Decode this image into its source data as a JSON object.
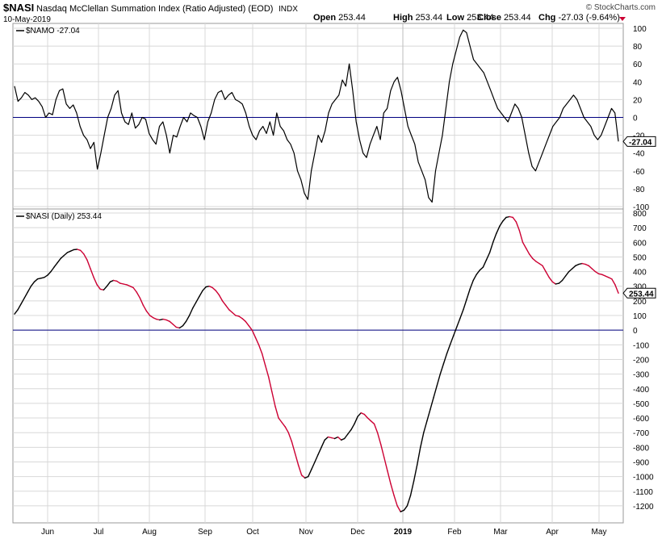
{
  "header": {
    "symbol": "$NASI",
    "name": "Nasdaq McClellan Summation Index (Ratio Adjusted) (EOD)",
    "exchange": "INDX",
    "date": "10-May-2019",
    "brand": "© StockCharts.com",
    "ohlc": [
      {
        "label": "Open",
        "value": "253.44"
      },
      {
        "label": "High",
        "value": "253.44"
      },
      {
        "label": "Low",
        "value": "253.44"
      },
      {
        "label": "Close",
        "value": "253.44"
      },
      {
        "label": "Chg",
        "value": "-27.03 (-9.64%)"
      }
    ]
  },
  "colors": {
    "line": "#000000",
    "down": "#cc0033",
    "zero_line": "#000080",
    "grid": "#d8d8d8",
    "border": "#999999"
  },
  "chart_data": [
    {
      "type": "line",
      "legend": "$NAMO -27.04",
      "last_value_label": "-27.04",
      "ylim": [
        -100,
        100
      ],
      "yticks": [
        100,
        80,
        60,
        40,
        20,
        0,
        -20,
        -40,
        -60,
        -80,
        -100
      ],
      "zero_line": 0,
      "x_labels": [
        "Jun",
        "Jul",
        "Aug",
        "Sep",
        "Oct",
        "Nov",
        "Dec",
        "2019",
        "Feb",
        "Mar",
        "Apr",
        "May"
      ],
      "values": [
        35,
        18,
        22,
        28,
        25,
        20,
        22,
        18,
        12,
        0,
        5,
        3,
        20,
        30,
        32,
        15,
        10,
        14,
        5,
        -10,
        -20,
        -25,
        -35,
        -28,
        -58,
        -40,
        -20,
        0,
        10,
        25,
        30,
        5,
        -5,
        -8,
        5,
        -12,
        -8,
        0,
        -2,
        -18,
        -25,
        -30,
        -10,
        -5,
        -20,
        -40,
        -20,
        -22,
        -10,
        0,
        -5,
        5,
        2,
        0,
        -10,
        -25,
        -5,
        5,
        20,
        28,
        30,
        20,
        25,
        28,
        20,
        18,
        15,
        5,
        -10,
        -20,
        -25,
        -15,
        -10,
        -18,
        -5,
        -20,
        5,
        -10,
        -15,
        -25,
        -30,
        -40,
        -60,
        -70,
        -85,
        -92,
        -60,
        -40,
        -20,
        -28,
        -15,
        5,
        15,
        20,
        25,
        42,
        35,
        60,
        30,
        -5,
        -25,
        -40,
        -45,
        -30,
        -20,
        -10,
        -25,
        5,
        10,
        30,
        40,
        45,
        30,
        10,
        -10,
        -20,
        -30,
        -50,
        -60,
        -70,
        -90,
        -95,
        -60,
        -40,
        -20,
        10,
        40,
        60,
        75,
        90,
        98,
        95,
        80,
        65,
        60,
        55,
        50,
        40,
        30,
        20,
        10,
        5,
        0,
        -5,
        5,
        15,
        10,
        0,
        -20,
        -40,
        -55,
        -60,
        -50,
        -40,
        -30,
        -20,
        -10,
        -5,
        0,
        10,
        15,
        20,
        25,
        20,
        10,
        0,
        -5,
        -10,
        -20,
        -25,
        -20,
        -10,
        0,
        10,
        5,
        -27
      ]
    },
    {
      "type": "line",
      "legend": "$NASI (Daily) 253.44",
      "last_value_label": "253.44",
      "ylim": [
        -1250,
        800
      ],
      "yticks": [
        800,
        700,
        600,
        500,
        400,
        300,
        200,
        100,
        0,
        -100,
        -200,
        -300,
        -400,
        -500,
        -600,
        -700,
        -800,
        -900,
        -1000,
        -1100,
        -1200
      ],
      "zero_line": 0,
      "x_labels": [
        "Jun",
        "Jul",
        "Aug",
        "Sep",
        "Oct",
        "Nov",
        "Dec",
        "2019",
        "Feb",
        "Mar",
        "Apr",
        "May"
      ],
      "values": [
        110,
        140,
        180,
        220,
        260,
        300,
        330,
        350,
        355,
        360,
        375,
        400,
        430,
        460,
        490,
        510,
        530,
        540,
        550,
        552,
        545,
        520,
        480,
        420,
        360,
        310,
        280,
        275,
        300,
        330,
        340,
        335,
        320,
        315,
        310,
        300,
        290,
        260,
        220,
        170,
        130,
        100,
        85,
        75,
        70,
        75,
        70,
        60,
        40,
        20,
        15,
        30,
        60,
        100,
        150,
        190,
        230,
        270,
        295,
        300,
        290,
        270,
        240,
        200,
        170,
        140,
        120,
        100,
        95,
        80,
        60,
        30,
        0,
        -50,
        -100,
        -160,
        -240,
        -320,
        -420,
        -520,
        -600,
        -630,
        -660,
        -700,
        -760,
        -840,
        -920,
        -990,
        -1010,
        -1000,
        -950,
        -900,
        -850,
        -800,
        -750,
        -730,
        -735,
        -740,
        -730,
        -750,
        -740,
        -710,
        -680,
        -640,
        -590,
        -565,
        -575,
        -600,
        -620,
        -640,
        -700,
        -780,
        -870,
        -960,
        -1050,
        -1130,
        -1200,
        -1240,
        -1230,
        -1200,
        -1130,
        -1030,
        -920,
        -800,
        -700,
        -620,
        -540,
        -460,
        -380,
        -300,
        -230,
        -160,
        -100,
        -40,
        20,
        80,
        140,
        210,
        280,
        340,
        380,
        410,
        430,
        480,
        530,
        600,
        660,
        710,
        745,
        770,
        775,
        770,
        740,
        680,
        600,
        560,
        520,
        490,
        470,
        455,
        440,
        400,
        360,
        330,
        315,
        320,
        340,
        370,
        400,
        420,
        440,
        450,
        455,
        450,
        440,
        420,
        400,
        385,
        380,
        370,
        360,
        350,
        310,
        253
      ]
    }
  ]
}
